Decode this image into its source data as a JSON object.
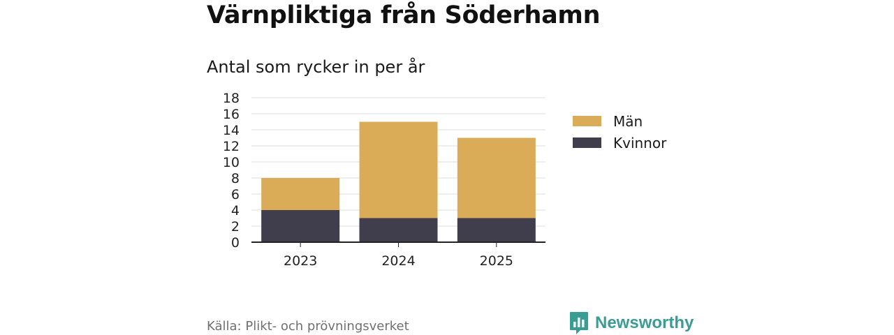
{
  "title": "Värnpliktiga från Söderhamn",
  "subtitle": "Antal som rycker in per år",
  "source": "Källa: Plikt- och prövningsverket",
  "brand": {
    "name": "Newsworthy",
    "icon": "newsworthy-logo-icon",
    "color": "#3a9d93"
  },
  "legend": [
    {
      "label": "Män",
      "color": "#daac57"
    },
    {
      "label": "Kvinnor",
      "color": "#403d4c"
    }
  ],
  "chart_data": {
    "type": "bar",
    "stacked": true,
    "title": "Värnpliktiga från Söderhamn",
    "subtitle": "Antal som rycker in per år",
    "categories": [
      "2023",
      "2024",
      "2025"
    ],
    "series": [
      {
        "name": "Kvinnor",
        "values": [
          4,
          3,
          3
        ],
        "color": "#403d4c"
      },
      {
        "name": "Män",
        "values": [
          4,
          12,
          10
        ],
        "color": "#daac57"
      }
    ],
    "ylim": [
      0,
      18
    ],
    "yticks": [
      "0",
      "2",
      "4",
      "6",
      "8",
      "10",
      "12",
      "14",
      "16",
      "18"
    ],
    "grid": true,
    "legend_position": "right",
    "xlabel": "",
    "ylabel": ""
  }
}
